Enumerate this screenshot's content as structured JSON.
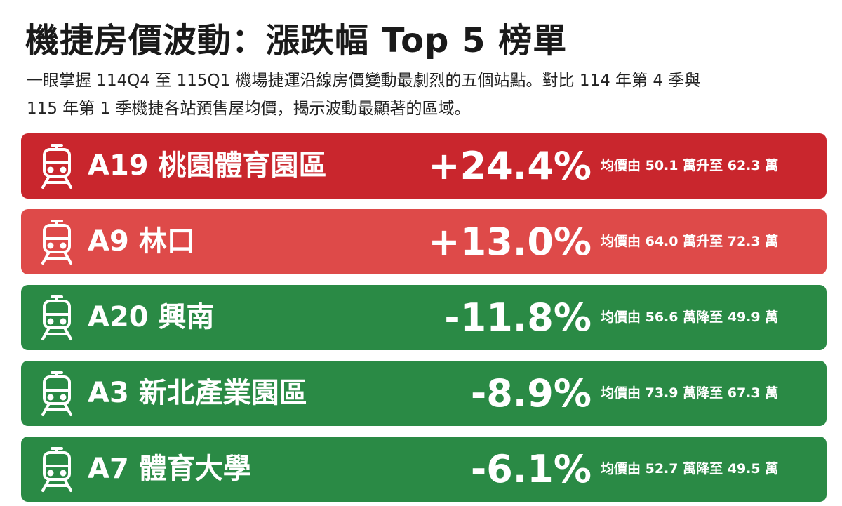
{
  "header": {
    "title": "機捷房價波動：漲跌幅 Top 5 榜單",
    "subtitle": [
      "一眼掌握 114Q4 至 115Q1 機場捷運沿線房價變動最劇烈的五個站點。對比 114 年第 4 季與",
      "115 年第 1 季機捷各站預售屋均價，揭示波動最顯著的區域。"
    ]
  },
  "rows": [
    {
      "station": "A19 桃園體育園區",
      "change": "+24.4%",
      "detail": "均價由 50.1 萬升至 62.3 萬",
      "color": "#c9262d"
    },
    {
      "station": "A9 林口",
      "change": "+13.0%",
      "detail": "均價由 64.0 萬升至 72.3 萬",
      "color": "#de4a49"
    },
    {
      "station": "A20 興南",
      "change": "-11.8%",
      "detail": "均價由 56.6 萬降至 49.9 萬",
      "color": "#2a8a45"
    },
    {
      "station": "A3 新北產業園區",
      "change": "-8.9%",
      "detail": "均價由 73.9 萬降至 67.3 萬",
      "color": "#2a8a45"
    },
    {
      "station": "A7 體育大學",
      "change": "-6.1%",
      "detail": "均價由 52.7 萬降至 49.5 萬",
      "color": "#2a8a45"
    }
  ]
}
